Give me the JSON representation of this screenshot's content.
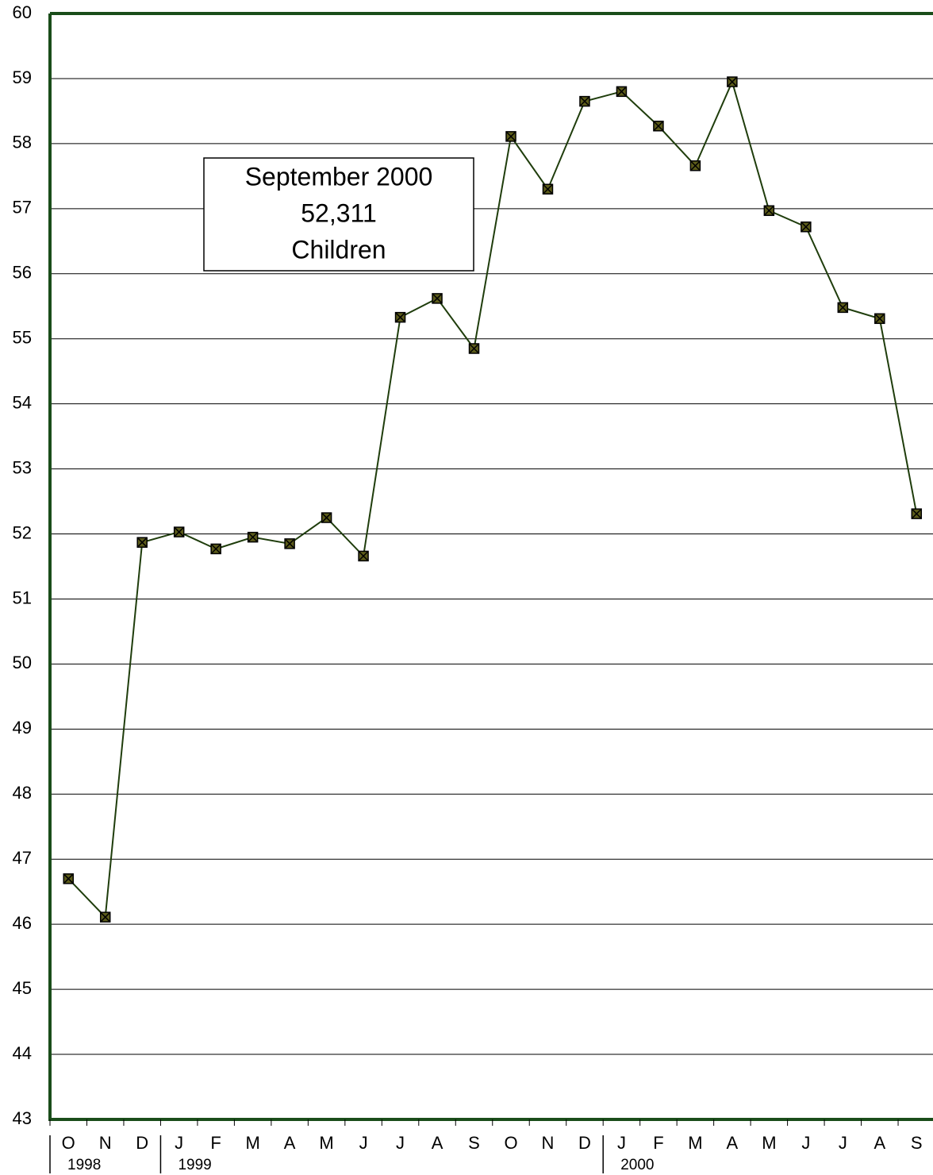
{
  "chart_data": {
    "type": "line",
    "categories": [
      "O",
      "N",
      "D",
      "J",
      "F",
      "M",
      "A",
      "M",
      "J",
      "J",
      "A",
      "S",
      "O",
      "N",
      "D",
      "J",
      "F",
      "M",
      "A",
      "M",
      "J",
      "J",
      "A",
      "S"
    ],
    "years": [
      {
        "label": "1998",
        "first_category": 0
      },
      {
        "label": "1999",
        "first_category": 3
      },
      {
        "label": "2000",
        "first_category": 15
      }
    ],
    "series": [
      {
        "color": "#1f3d0c",
        "values": [
          46.7,
          46.11,
          51.87,
          52.03,
          51.77,
          51.95,
          51.85,
          52.25,
          51.66,
          55.33,
          55.62,
          54.85,
          58.11,
          57.3,
          58.65,
          58.8,
          58.27,
          57.66,
          58.95,
          56.97,
          56.72,
          55.48,
          55.31,
          52.31
        ]
      }
    ],
    "ylim": [
      43,
      60
    ],
    "yticks": [
      43,
      44,
      45,
      46,
      47,
      48,
      49,
      50,
      51,
      52,
      53,
      54,
      55,
      56,
      57,
      58,
      59,
      60
    ],
    "grid": true,
    "annotation": [
      "September 2000",
      "52,311",
      "Children"
    ]
  }
}
